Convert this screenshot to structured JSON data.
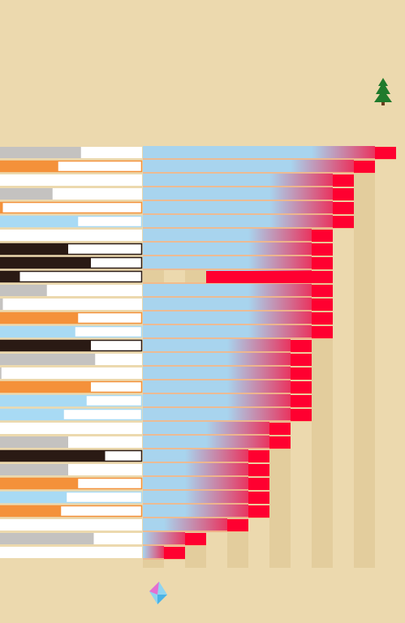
{
  "header": {
    "title": "",
    "subtitle": ""
  },
  "colors": {
    "background": "#ecd9ae",
    "stripe": "#dcc38f",
    "timeline": "#a8d4ee",
    "marker": "#ff0030",
    "row_line": "#f2b88a",
    "bar_gray": "#c4c2c0",
    "bar_orange": "#f4913a",
    "bar_blue": "#a8daf4",
    "bar_dark": "#2a1a14"
  },
  "icons": {
    "tree": "christmas-tree-icon",
    "logo": "diamond-logo-icon"
  },
  "chart_data": {
    "type": "bar",
    "title": "",
    "xlabel": "",
    "ylabel": "",
    "xlim": [
      0,
      12
    ],
    "columns": 12,
    "rows": [
      {
        "category": "",
        "fill": 0.57,
        "color": "gray",
        "start": 0,
        "end": 12
      },
      {
        "category": "",
        "fill": 0.41,
        "color": "orange",
        "start": 0,
        "end": 11
      },
      {
        "category": "",
        "fill": 0.0,
        "color": "gray",
        "start": 0,
        "end": 10
      },
      {
        "category": "",
        "fill": 0.37,
        "color": "gray",
        "start": 0,
        "end": 10
      },
      {
        "category": "",
        "fill": 0.02,
        "color": "orange",
        "start": 0,
        "end": 10
      },
      {
        "category": "",
        "fill": 0.55,
        "color": "blue",
        "start": 0,
        "end": 10
      },
      {
        "category": "",
        "fill": 0.0,
        "color": "gray",
        "start": 0,
        "end": 9
      },
      {
        "category": "",
        "fill": 0.48,
        "color": "dark",
        "start": 0,
        "end": 9
      },
      {
        "category": "",
        "fill": 0.64,
        "color": "dark",
        "start": 0,
        "end": 9
      },
      {
        "category": "",
        "fill": 0.14,
        "color": "dark",
        "start": 3,
        "end": 9
      },
      {
        "category": "",
        "fill": 0.33,
        "color": "gray",
        "start": 0,
        "end": 9
      },
      {
        "category": "",
        "fill": 0.02,
        "color": "gray",
        "start": 0,
        "end": 9
      },
      {
        "category": "",
        "fill": 0.55,
        "color": "orange",
        "start": 0,
        "end": 9
      },
      {
        "category": "",
        "fill": 0.53,
        "color": "blue",
        "start": 0,
        "end": 9
      },
      {
        "category": "",
        "fill": 0.64,
        "color": "dark",
        "start": 0,
        "end": 8
      },
      {
        "category": "",
        "fill": 0.67,
        "color": "gray",
        "start": 0,
        "end": 8
      },
      {
        "category": "",
        "fill": 0.01,
        "color": "gray",
        "start": 0,
        "end": 8
      },
      {
        "category": "",
        "fill": 0.64,
        "color": "orange",
        "start": 0,
        "end": 8
      },
      {
        "category": "",
        "fill": 0.61,
        "color": "blue",
        "start": 0,
        "end": 8
      },
      {
        "category": "",
        "fill": 0.45,
        "color": "blue",
        "start": 0,
        "end": 8
      },
      {
        "category": "",
        "fill": 0.0,
        "color": "gray",
        "start": 0,
        "end": 7
      },
      {
        "category": "",
        "fill": 0.48,
        "color": "gray",
        "start": 0,
        "end": 7
      },
      {
        "category": "",
        "fill": 0.74,
        "color": "dark",
        "start": 0,
        "end": 6
      },
      {
        "category": "",
        "fill": 0.48,
        "color": "gray",
        "start": 0,
        "end": 6
      },
      {
        "category": "",
        "fill": 0.55,
        "color": "orange",
        "start": 0,
        "end": 6
      },
      {
        "category": "",
        "fill": 0.47,
        "color": "blue",
        "start": 0,
        "end": 6
      },
      {
        "category": "",
        "fill": 0.43,
        "color": "orange",
        "start": 0,
        "end": 6
      },
      {
        "category": "",
        "fill": 0.0,
        "color": "gray",
        "start": 0,
        "end": 5
      },
      {
        "category": "",
        "fill": 0.66,
        "color": "gray",
        "start": 0,
        "end": 3
      },
      {
        "category": "",
        "fill": 0.0,
        "color": "gray",
        "start": 0,
        "end": 2
      }
    ]
  }
}
